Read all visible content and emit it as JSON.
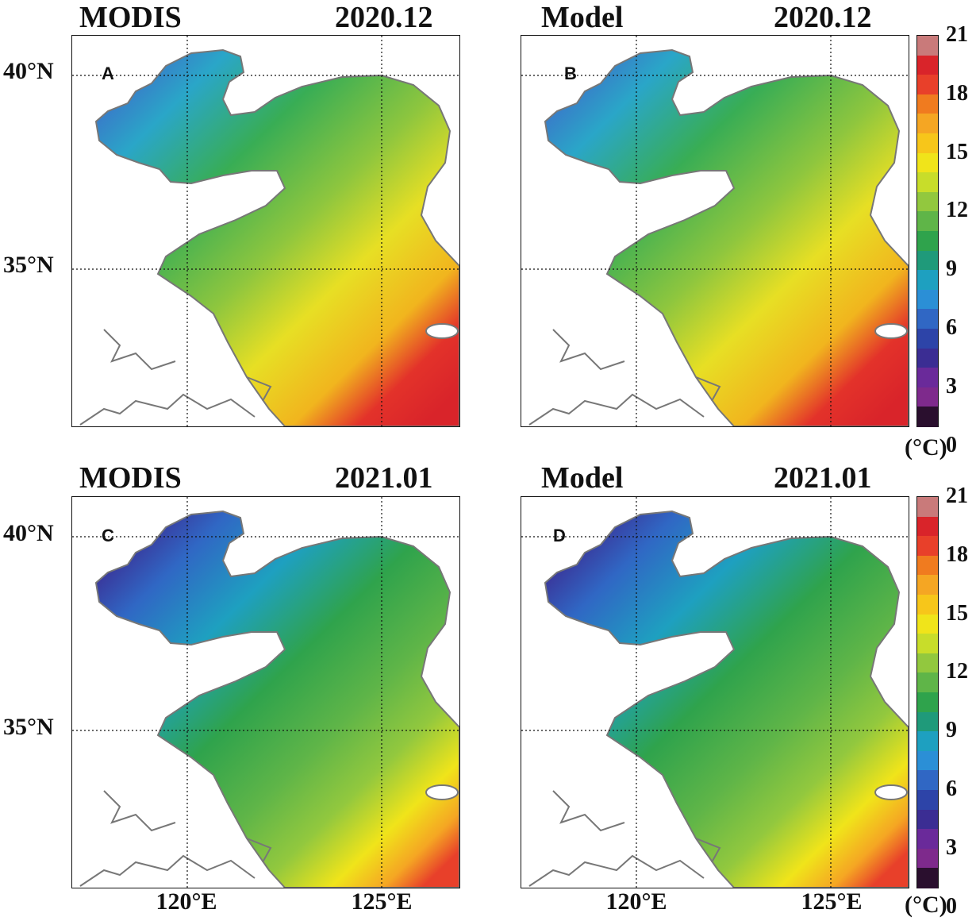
{
  "panels": [
    {
      "id": "A",
      "source": "MODIS",
      "date": "2020.12"
    },
    {
      "id": "B",
      "source": "Model",
      "date": "2020.12"
    },
    {
      "id": "C",
      "source": "MODIS",
      "date": "2021.01"
    },
    {
      "id": "D",
      "source": "Model",
      "date": "2021.01"
    }
  ],
  "axes": {
    "lat_labels": [
      "40°N",
      "35°N"
    ],
    "lon_labels": [
      "120°E",
      "125°E"
    ]
  },
  "colorbar": {
    "ticks": [
      "21",
      "18",
      "15",
      "12",
      "9",
      "6",
      "3",
      "0"
    ],
    "unit": "(°C)",
    "colors": [
      "#c97a7a",
      "#d9242a",
      "#e8402a",
      "#f07b1f",
      "#f5a623",
      "#f7c61a",
      "#f0e41a",
      "#c8dd2a",
      "#92c83e",
      "#5fb548",
      "#2fa34c",
      "#1f9a7a",
      "#1ea0c0",
      "#2b8fd6",
      "#3067c4",
      "#2d44a8",
      "#3b2d93",
      "#6a2a9a",
      "#7e2a8c",
      "#2a0f2e"
    ]
  }
}
